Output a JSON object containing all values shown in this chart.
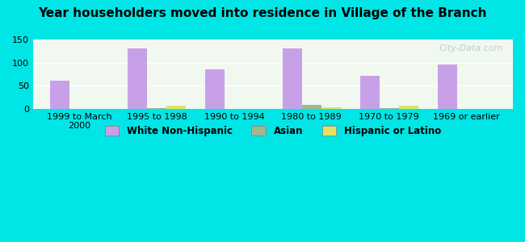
{
  "title": "Year householders moved into residence in Village of the Branch",
  "categories": [
    "1999 to March\n2000",
    "1995 to 1998",
    "1990 to 1994",
    "1980 to 1989",
    "1970 to 1979",
    "1969 or earlier"
  ],
  "white_non_hispanic": [
    60,
    131,
    85,
    130,
    71,
    96
  ],
  "asian": [
    0,
    2,
    0,
    9,
    2,
    0
  ],
  "hispanic_or_latino": [
    0,
    7,
    0,
    3,
    6,
    0
  ],
  "bar_width": 0.25,
  "colors": {
    "white_non_hispanic": "#c8a0e8",
    "asian": "#a0b890",
    "hispanic_or_latino": "#e8e060"
  },
  "background_outer": "#00e5e5",
  "background_plot": "#f0f8f0",
  "ylim": [
    0,
    150
  ],
  "yticks": [
    0,
    50,
    100,
    150
  ],
  "watermark": "City-Data.com",
  "legend_labels": [
    "White Non-Hispanic",
    "Asian",
    "Hispanic or Latino"
  ]
}
